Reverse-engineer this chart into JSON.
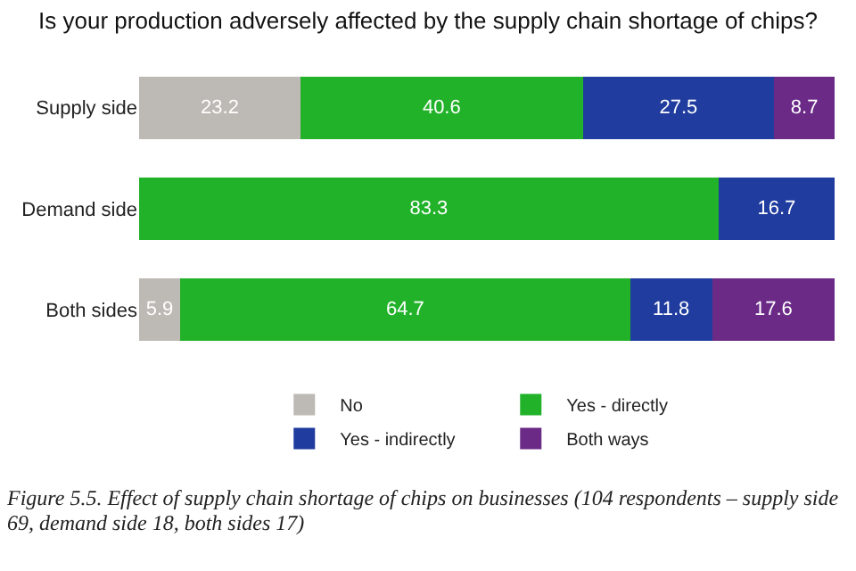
{
  "chart_data": {
    "type": "bar",
    "orientation": "horizontal",
    "stacked": true,
    "title": "Is your production adversely affected by the supply chain shortage of chips?",
    "categories": [
      "Supply side",
      "Demand side",
      "Both sides"
    ],
    "series": [
      {
        "name": "No",
        "color": "#bdb9b4",
        "values": [
          23.2,
          null,
          5.9
        ]
      },
      {
        "name": "Yes - directly",
        "color": "#22b22a",
        "values": [
          40.6,
          83.3,
          64.7
        ]
      },
      {
        "name": "Yes - indirectly",
        "color": "#1f3c9e",
        "values": [
          27.5,
          16.7,
          11.8
        ]
      },
      {
        "name": "Both ways",
        "color": "#6a2a86",
        "values": [
          8.7,
          null,
          17.6
        ]
      }
    ],
    "xlim": [
      0,
      100
    ],
    "data_labels": true,
    "legend": "bottom",
    "tick_labels": "y",
    "annotations": [
      "Figure 5.5. Effect of supply chain shortage of chips on businesses (104 respondents – supply side 69, demand side 18, both sides 17)"
    ]
  }
}
